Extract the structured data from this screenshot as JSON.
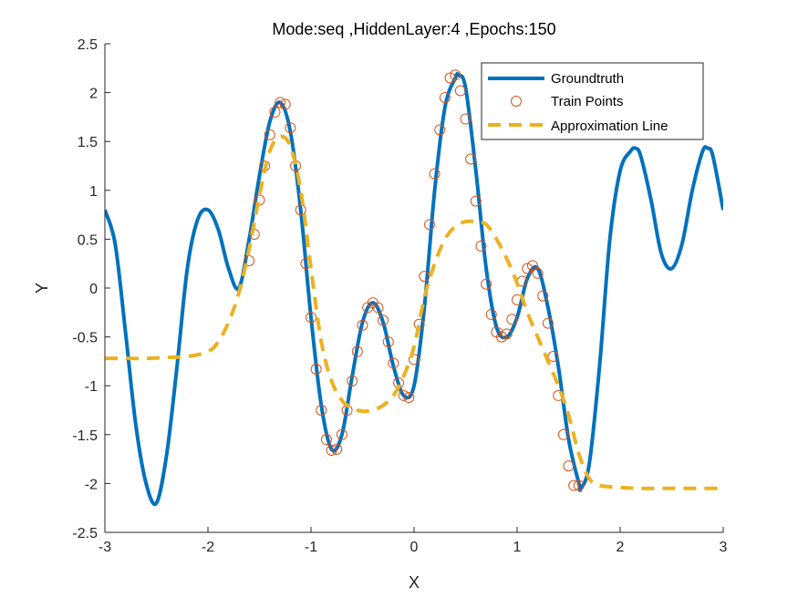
{
  "chart_data": {
    "type": "line",
    "title": "Mode:seq ,HiddenLayer:4 ,Epochs:150",
    "xlabel": "X",
    "ylabel": "Y",
    "xlim": [
      -3,
      3
    ],
    "ylim": [
      -2.5,
      2.5
    ],
    "xticks": [
      -3,
      -2,
      -1,
      0,
      1,
      2,
      3
    ],
    "xtick_labels": [
      "-3",
      "-2",
      "-1",
      "0",
      "1",
      "2",
      "3"
    ],
    "yticks": [
      -2.5,
      -2,
      -1.5,
      -1,
      -0.5,
      0,
      0.5,
      1,
      1.5,
      2,
      2.5
    ],
    "ytick_labels": [
      "-2.5",
      "-2",
      "-1.5",
      "-1",
      "-0.5",
      "0",
      "0.5",
      "1",
      "1.5",
      "2",
      "2.5"
    ],
    "grid": false,
    "legend_position": "top-right",
    "series": [
      {
        "name": "Groundtruth",
        "style": "solid",
        "color": "#0072BD",
        "x": [
          -3.0,
          -2.9,
          -2.8,
          -2.7,
          -2.6,
          -2.5,
          -2.4,
          -2.3,
          -2.2,
          -2.1,
          -2.0,
          -1.9,
          -1.8,
          -1.7,
          -1.6,
          -1.5,
          -1.4,
          -1.3,
          -1.2,
          -1.1,
          -1.0,
          -0.9,
          -0.8,
          -0.7,
          -0.6,
          -0.5,
          -0.4,
          -0.3,
          -0.2,
          -0.1,
          0.0,
          0.1,
          0.2,
          0.3,
          0.4,
          0.43,
          0.5,
          0.6,
          0.7,
          0.8,
          0.9,
          1.0,
          1.1,
          1.2,
          1.3,
          1.4,
          1.5,
          1.6,
          1.62,
          1.7,
          1.8,
          1.9,
          2.0,
          2.1,
          2.15,
          2.2,
          2.3,
          2.4,
          2.5,
          2.6,
          2.7,
          2.8,
          2.85,
          2.9,
          3.0
        ],
        "y": [
          0.8,
          0.45,
          -0.45,
          -1.4,
          -2.0,
          -2.2,
          -1.7,
          -0.8,
          0.2,
          0.7,
          0.8,
          0.6,
          0.2,
          0.0,
          0.5,
          1.15,
          1.7,
          1.9,
          1.6,
          0.8,
          -0.3,
          -1.2,
          -1.65,
          -1.5,
          -0.9,
          -0.35,
          -0.15,
          -0.35,
          -0.8,
          -1.1,
          -1.0,
          -0.2,
          1.0,
          1.85,
          2.15,
          2.18,
          2.05,
          1.2,
          0.2,
          -0.4,
          -0.5,
          -0.3,
          0.1,
          0.2,
          -0.2,
          -0.8,
          -1.55,
          -2.0,
          -2.05,
          -1.8,
          -0.8,
          0.5,
          1.2,
          1.4,
          1.43,
          1.35,
          0.9,
          0.35,
          0.2,
          0.45,
          1.0,
          1.4,
          1.43,
          1.35,
          0.8
        ]
      },
      {
        "name": "Train Points",
        "style": "markers",
        "color": "#D95319",
        "x": [
          -1.6,
          -1.55,
          -1.5,
          -1.45,
          -1.4,
          -1.35,
          -1.3,
          -1.25,
          -1.2,
          -1.15,
          -1.1,
          -1.05,
          -1.0,
          -0.95,
          -0.9,
          -0.85,
          -0.8,
          -0.75,
          -0.7,
          -0.65,
          -0.6,
          -0.55,
          -0.5,
          -0.45,
          -0.4,
          -0.35,
          -0.3,
          -0.25,
          -0.2,
          -0.15,
          -0.1,
          -0.05,
          0.0,
          0.05,
          0.1,
          0.15,
          0.2,
          0.25,
          0.3,
          0.35,
          0.4,
          0.45,
          0.5,
          0.55,
          0.6,
          0.65,
          0.7,
          0.75,
          0.8,
          0.85,
          0.9,
          0.95,
          1.0,
          1.05,
          1.1,
          1.15,
          1.2,
          1.25,
          1.3,
          1.35,
          1.4,
          1.45,
          1.5,
          1.55,
          1.6
        ],
        "y": [
          0.28,
          0.55,
          0.9,
          1.25,
          1.57,
          1.8,
          1.9,
          1.88,
          1.64,
          1.25,
          0.8,
          0.25,
          -0.3,
          -0.83,
          -1.25,
          -1.55,
          -1.66,
          -1.65,
          -1.5,
          -1.25,
          -0.95,
          -0.65,
          -0.38,
          -0.2,
          -0.15,
          -0.2,
          -0.33,
          -0.55,
          -0.77,
          -0.97,
          -1.1,
          -1.12,
          -0.73,
          -0.37,
          0.12,
          0.65,
          1.17,
          1.62,
          1.95,
          2.15,
          2.18,
          2.02,
          1.73,
          1.32,
          0.89,
          0.43,
          0.04,
          -0.27,
          -0.45,
          -0.5,
          -0.47,
          -0.32,
          -0.12,
          0.07,
          0.2,
          0.23,
          0.15,
          -0.08,
          -0.36,
          -0.7,
          -1.1,
          -1.5,
          -1.82,
          -2.02,
          -2.02
        ]
      },
      {
        "name": "Approximation Line",
        "style": "dashed",
        "color": "#EDB120",
        "x": [
          -3.0,
          -2.8,
          -2.6,
          -2.4,
          -2.2,
          -2.0,
          -1.9,
          -1.8,
          -1.7,
          -1.6,
          -1.5,
          -1.4,
          -1.3,
          -1.2,
          -1.1,
          -1.0,
          -0.9,
          -0.8,
          -0.7,
          -0.6,
          -0.5,
          -0.4,
          -0.3,
          -0.2,
          -0.1,
          0.0,
          0.1,
          0.2,
          0.3,
          0.4,
          0.5,
          0.6,
          0.7,
          0.8,
          0.9,
          1.0,
          1.1,
          1.2,
          1.3,
          1.4,
          1.5,
          1.6,
          1.7,
          1.8,
          2.0,
          2.2,
          2.4,
          2.6,
          2.8,
          3.0
        ],
        "y": [
          -0.72,
          -0.72,
          -0.72,
          -0.71,
          -0.7,
          -0.65,
          -0.55,
          -0.35,
          -0.05,
          0.4,
          0.95,
          1.4,
          1.55,
          1.45,
          1.0,
          0.2,
          -0.55,
          -0.95,
          -1.15,
          -1.23,
          -1.26,
          -1.25,
          -1.2,
          -1.1,
          -0.9,
          -0.6,
          -0.1,
          0.25,
          0.5,
          0.63,
          0.68,
          0.68,
          0.65,
          0.5,
          0.3,
          0.05,
          -0.25,
          -0.5,
          -0.75,
          -1.0,
          -1.3,
          -1.7,
          -1.95,
          -2.02,
          -2.04,
          -2.05,
          -2.05,
          -2.05,
          -2.05,
          -2.05
        ]
      }
    ]
  }
}
